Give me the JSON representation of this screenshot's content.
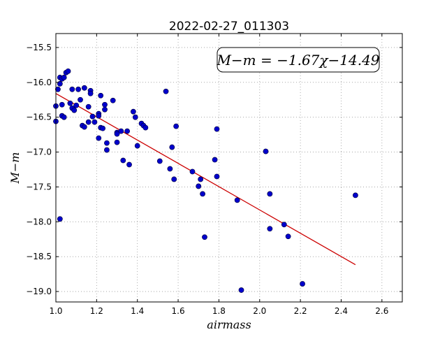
{
  "chart_data": {
    "type": "scatter",
    "title": "2022-02-27_011303",
    "xlabel": "airmass",
    "ylabel": "M−m",
    "xlim": [
      1.0,
      2.7
    ],
    "ylim": [
      -19.15,
      -15.3
    ],
    "x_ticks": [
      1.0,
      1.2,
      1.4,
      1.6,
      1.8,
      2.0,
      2.2,
      2.4,
      2.6
    ],
    "x_tick_labels": [
      "1.0",
      "1.2",
      "1.4",
      "1.6",
      "1.8",
      "2.0",
      "2.2",
      "2.4",
      "2.6"
    ],
    "y_ticks": [
      -15.5,
      -16.0,
      -16.5,
      -17.0,
      -17.5,
      -18.0,
      -18.5,
      -19.0
    ],
    "y_tick_labels": [
      "−15.5",
      "−16.0",
      "−16.5",
      "−17.0",
      "−17.5",
      "−18.0",
      "−18.5",
      "−19.0"
    ],
    "grid": true,
    "annotation": "M−m = −1.67χ−14.49",
    "points_color": "#0000cc",
    "fit_color": "#cc0000",
    "fit": {
      "slope": -1.67,
      "intercept": -14.49,
      "x_range": [
        1.0,
        2.47
      ]
    },
    "points": [
      [
        1.0,
        -16.34
      ],
      [
        1.0,
        -16.56
      ],
      [
        1.01,
        -16.1
      ],
      [
        1.02,
        -15.93
      ],
      [
        1.02,
        -16.02
      ],
      [
        1.03,
        -15.95
      ],
      [
        1.03,
        -16.32
      ],
      [
        1.03,
        -16.48
      ],
      [
        1.04,
        -16.5
      ],
      [
        1.04,
        -15.93
      ],
      [
        1.05,
        -15.86
      ],
      [
        1.06,
        -15.84
      ],
      [
        1.07,
        -16.3
      ],
      [
        1.08,
        -16.37
      ],
      [
        1.08,
        -16.1
      ],
      [
        1.09,
        -16.4
      ],
      [
        1.1,
        -16.33
      ],
      [
        1.11,
        -16.1
      ],
      [
        1.12,
        -16.25
      ],
      [
        1.13,
        -16.62
      ],
      [
        1.14,
        -16.08
      ],
      [
        1.14,
        -16.64
      ],
      [
        1.16,
        -16.35
      ],
      [
        1.16,
        -16.57
      ],
      [
        1.17,
        -16.12
      ],
      [
        1.17,
        -16.16
      ],
      [
        1.18,
        -16.49
      ],
      [
        1.19,
        -16.57
      ],
      [
        1.21,
        -16.45
      ],
      [
        1.21,
        -16.48
      ],
      [
        1.21,
        -16.8
      ],
      [
        1.22,
        -16.19
      ],
      [
        1.22,
        -16.65
      ],
      [
        1.23,
        -16.66
      ],
      [
        1.24,
        -16.32
      ],
      [
        1.24,
        -16.39
      ],
      [
        1.25,
        -16.87
      ],
      [
        1.25,
        -16.97
      ],
      [
        1.28,
        -16.26
      ],
      [
        1.3,
        -16.72
      ],
      [
        1.3,
        -16.74
      ],
      [
        1.3,
        -16.86
      ],
      [
        1.32,
        -16.7
      ],
      [
        1.33,
        -17.12
      ],
      [
        1.35,
        -16.7
      ],
      [
        1.36,
        -17.18
      ],
      [
        1.38,
        -16.42
      ],
      [
        1.39,
        -16.5
      ],
      [
        1.4,
        -16.91
      ],
      [
        1.42,
        -16.59
      ],
      [
        1.43,
        -16.62
      ],
      [
        1.44,
        -16.65
      ],
      [
        1.51,
        -17.13
      ],
      [
        1.54,
        -16.13
      ],
      [
        1.56,
        -17.24
      ],
      [
        1.57,
        -16.93
      ],
      [
        1.58,
        -17.39
      ],
      [
        1.59,
        -16.63
      ],
      [
        1.67,
        -17.28
      ],
      [
        1.7,
        -17.49
      ],
      [
        1.71,
        -17.39
      ],
      [
        1.72,
        -17.6
      ],
      [
        1.73,
        -18.22
      ],
      [
        1.78,
        -17.11
      ],
      [
        1.79,
        -16.67
      ],
      [
        1.79,
        -17.35
      ],
      [
        1.89,
        -17.69
      ],
      [
        1.91,
        -18.98
      ],
      [
        2.03,
        -16.99
      ],
      [
        2.05,
        -17.6
      ],
      [
        2.05,
        -18.1
      ],
      [
        2.12,
        -18.04
      ],
      [
        2.14,
        -18.21
      ],
      [
        2.21,
        -18.89
      ],
      [
        2.47,
        -17.62
      ],
      [
        1.02,
        -17.96
      ]
    ]
  }
}
